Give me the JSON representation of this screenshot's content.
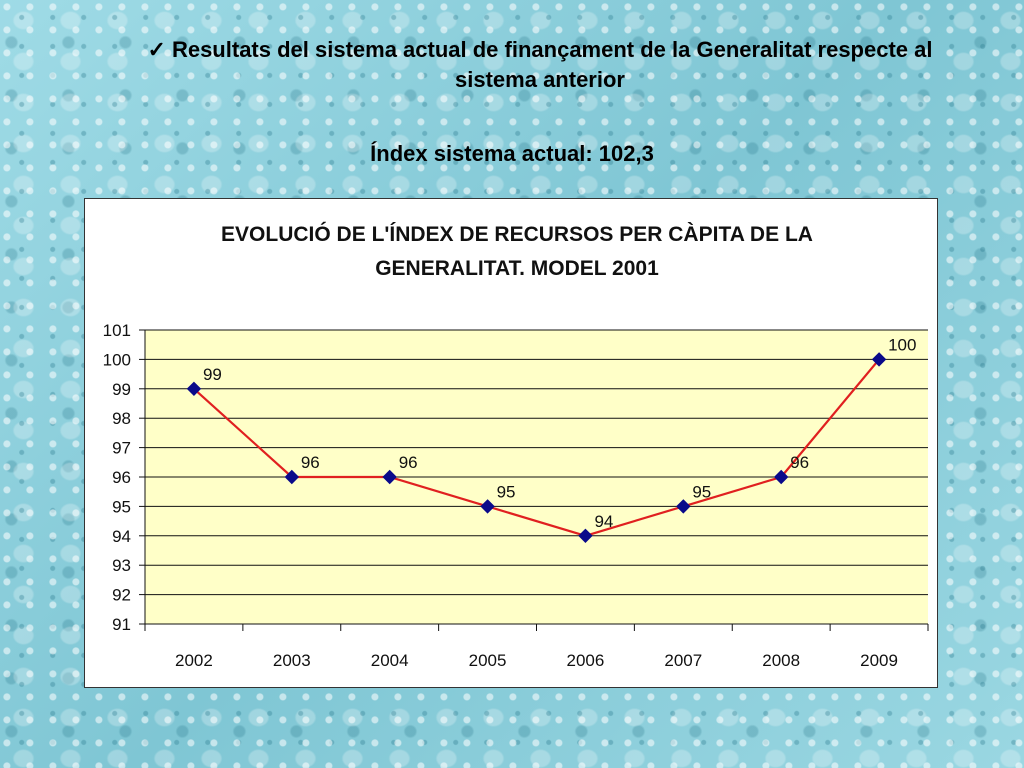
{
  "header": {
    "check_symbol": "✓",
    "line1": "Resultats del sistema actual de finançament de la Generalitat respecte al",
    "line2": "sistema anterior",
    "index_text": "Índex sistema actual: 102,3"
  },
  "chart_data": {
    "type": "line",
    "title_lines": [
      "EVOLUCIÓ DE L'ÍNDEX DE RECURSOS PER CÀPITA DE LA",
      "GENERALITAT. MODEL 2001"
    ],
    "categories": [
      "2002",
      "2003",
      "2004",
      "2005",
      "2006",
      "2007",
      "2008",
      "2009"
    ],
    "series": [
      {
        "values": [
          99,
          96,
          96,
          95,
          94,
          95,
          96,
          100
        ]
      }
    ],
    "data_labels": [
      "99",
      "96",
      "96",
      "95",
      "94",
      "95",
      "96",
      "100"
    ],
    "ylim": [
      91,
      101
    ],
    "yticks": [
      91,
      92,
      93,
      94,
      95,
      96,
      97,
      98,
      99,
      100,
      101
    ],
    "grid": true,
    "plot_background": "#ffffc8",
    "line_color": "#e02020",
    "marker_color": "#0a0a8a"
  }
}
